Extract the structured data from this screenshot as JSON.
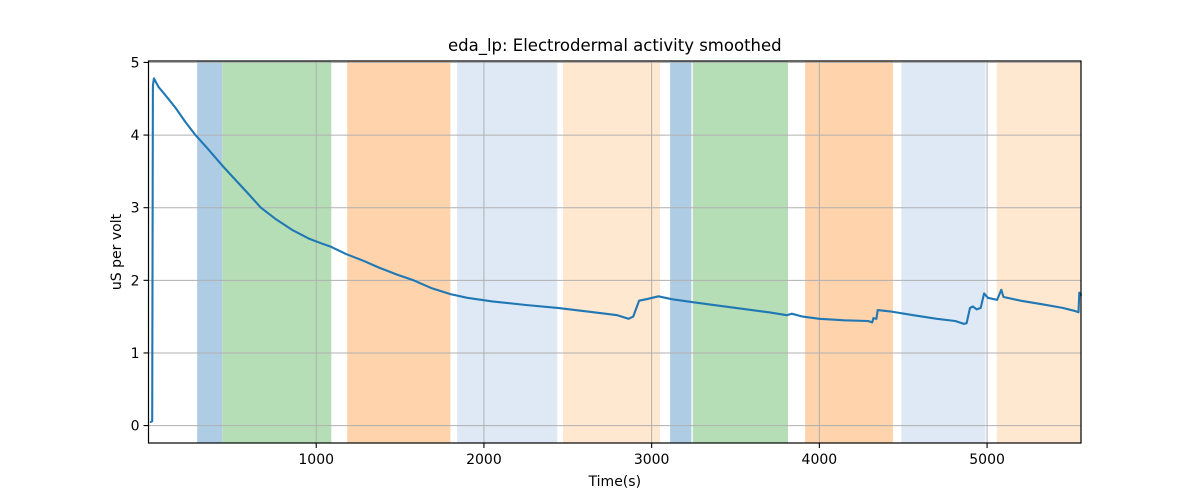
{
  "figure": {
    "background": "#ffffff"
  },
  "chart_data": {
    "type": "line",
    "title": "eda_lp: Electrodermal activity smoothed",
    "xlabel": "Time(s)",
    "ylabel": "uS per volt",
    "xlim": [
      0,
      5560
    ],
    "ylim": [
      -0.24,
      5.02
    ],
    "xticks": [
      1000,
      2000,
      3000,
      4000,
      5000
    ],
    "yticks": [
      0,
      1,
      2,
      3,
      4,
      5
    ],
    "grid": true,
    "grid_color": "#b0b0b0",
    "axis_color": "#000000",
    "legend_position": "none",
    "series": [
      {
        "name": "eda_lp",
        "color": "#1f77b4",
        "line_width": 2.1,
        "points": [
          [
            14,
            0.05
          ],
          [
            22,
            0.06
          ],
          [
            26,
            4.68
          ],
          [
            32,
            4.78
          ],
          [
            60,
            4.66
          ],
          [
            100,
            4.55
          ],
          [
            160,
            4.38
          ],
          [
            220,
            4.18
          ],
          [
            280,
            4.0
          ],
          [
            350,
            3.82
          ],
          [
            440,
            3.58
          ],
          [
            520,
            3.38
          ],
          [
            600,
            3.18
          ],
          [
            670,
            3.0
          ],
          [
            760,
            2.84
          ],
          [
            860,
            2.69
          ],
          [
            960,
            2.57
          ],
          [
            1030,
            2.51
          ],
          [
            1090,
            2.46
          ],
          [
            1180,
            2.36
          ],
          [
            1280,
            2.27
          ],
          [
            1380,
            2.17
          ],
          [
            1480,
            2.08
          ],
          [
            1580,
            2.0
          ],
          [
            1690,
            1.89
          ],
          [
            1800,
            1.81
          ],
          [
            1900,
            1.76
          ],
          [
            2050,
            1.71
          ],
          [
            2250,
            1.66
          ],
          [
            2440,
            1.62
          ],
          [
            2620,
            1.57
          ],
          [
            2795,
            1.52
          ],
          [
            2862,
            1.47
          ],
          [
            2890,
            1.5
          ],
          [
            2925,
            1.72
          ],
          [
            2970,
            1.74
          ],
          [
            3040,
            1.78
          ],
          [
            3120,
            1.74
          ],
          [
            3240,
            1.7
          ],
          [
            3400,
            1.65
          ],
          [
            3530,
            1.61
          ],
          [
            3700,
            1.56
          ],
          [
            3805,
            1.52
          ],
          [
            3835,
            1.54
          ],
          [
            3900,
            1.5
          ],
          [
            4000,
            1.47
          ],
          [
            4150,
            1.45
          ],
          [
            4290,
            1.44
          ],
          [
            4315,
            1.42
          ],
          [
            4322,
            1.48
          ],
          [
            4340,
            1.47
          ],
          [
            4348,
            1.59
          ],
          [
            4430,
            1.57
          ],
          [
            4560,
            1.52
          ],
          [
            4700,
            1.47
          ],
          [
            4810,
            1.44
          ],
          [
            4862,
            1.4
          ],
          [
            4878,
            1.41
          ],
          [
            4898,
            1.62
          ],
          [
            4915,
            1.64
          ],
          [
            4938,
            1.6
          ],
          [
            4962,
            1.62
          ],
          [
            4982,
            1.82
          ],
          [
            5005,
            1.76
          ],
          [
            5060,
            1.73
          ],
          [
            5085,
            1.87
          ],
          [
            5098,
            1.77
          ],
          [
            5200,
            1.72
          ],
          [
            5330,
            1.67
          ],
          [
            5450,
            1.62
          ],
          [
            5520,
            1.58
          ],
          [
            5545,
            1.56
          ],
          [
            5550,
            1.83
          ],
          [
            5560,
            1.8
          ]
        ]
      }
    ],
    "bands": [
      {
        "name": "condition-band-blue-1",
        "start": 290,
        "end": 440,
        "color": "#aecde5"
      },
      {
        "name": "condition-band-green-1",
        "start": 440,
        "end": 1090,
        "color": "#b6deb6"
      },
      {
        "name": "condition-band-orange-1",
        "start": 1185,
        "end": 1800,
        "color": "#ffd3ab"
      },
      {
        "name": "condition-band-lightblue-1",
        "start": 1840,
        "end": 2437,
        "color": "#dfe8f5"
      },
      {
        "name": "condition-band-lightorange-1",
        "start": 2472,
        "end": 3050,
        "color": "#ffe7d0"
      },
      {
        "name": "condition-band-blue-2",
        "start": 3110,
        "end": 3237,
        "color": "#aecde5"
      },
      {
        "name": "condition-band-green-2",
        "start": 3245,
        "end": 3813,
        "color": "#b6deb6"
      },
      {
        "name": "condition-band-orange-2",
        "start": 3915,
        "end": 4439,
        "color": "#ffd3ab"
      },
      {
        "name": "condition-band-lightblue-2",
        "start": 4489,
        "end": 4990,
        "color": "#dfe8f5"
      },
      {
        "name": "condition-band-lightorange-2",
        "start": 5058,
        "end": 5560,
        "color": "#ffe7d0"
      }
    ]
  }
}
